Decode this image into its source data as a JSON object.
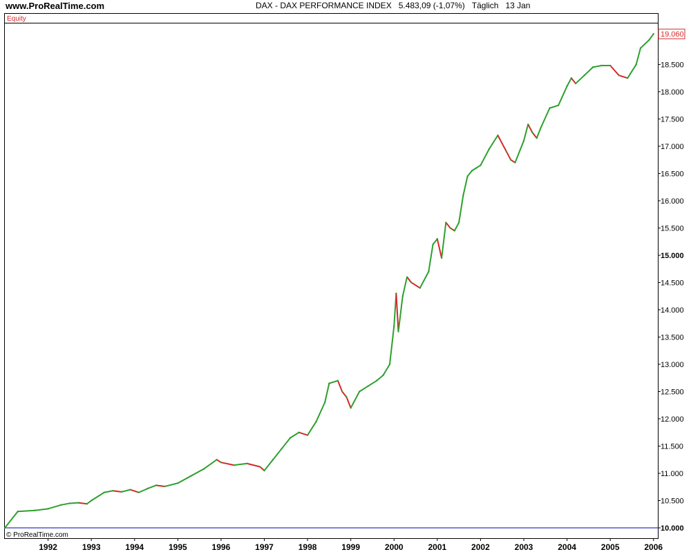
{
  "header": {
    "site": "www.ProRealTime.com",
    "instrument": "DAX - DAX PERFORMANCE INDEX",
    "quote": "5.483,09 (-1,07%)",
    "period": "Täglich",
    "date": "13 Jan"
  },
  "panel_label": "Equity",
  "copyright": "© ProRealTime.com",
  "colors": {
    "up": "#2ca02c",
    "down": "#d62728",
    "frame": "#000000",
    "baseline": "#0000aa",
    "last_price": "#d62728"
  },
  "chart_data": {
    "type": "line",
    "title": "DAX - DAX PERFORMANCE INDEX",
    "series": [
      {
        "name": "Equity",
        "x": [
          1991.0,
          1991.3,
          1991.7,
          1992.0,
          1992.3,
          1992.5,
          1992.7,
          1992.9,
          1993.0,
          1993.3,
          1993.5,
          1993.7,
          1993.9,
          1994.1,
          1994.3,
          1994.5,
          1994.7,
          1995.0,
          1995.3,
          1995.6,
          1995.9,
          1996.0,
          1996.3,
          1996.6,
          1996.9,
          1997.0,
          1997.2,
          1997.4,
          1997.6,
          1997.8,
          1998.0,
          1998.2,
          1998.4,
          1998.5,
          1998.7,
          1998.8,
          1998.9,
          1999.0,
          1999.2,
          1999.4,
          1999.6,
          1999.75,
          1999.9,
          2000.0,
          2000.05,
          2000.1,
          2000.2,
          2000.3,
          2000.4,
          2000.6,
          2000.8,
          2000.9,
          2001.0,
          2001.1,
          2001.2,
          2001.3,
          2001.4,
          2001.5,
          2001.6,
          2001.7,
          2001.8,
          2001.9,
          2002.0,
          2002.2,
          2002.4,
          2002.6,
          2002.7,
          2002.8,
          2003.0,
          2003.1,
          2003.2,
          2003.3,
          2003.4,
          2003.6,
          2003.8,
          2004.0,
          2004.1,
          2004.2,
          2004.4,
          2004.6,
          2004.8,
          2005.0,
          2005.2,
          2005.4,
          2005.6,
          2005.7,
          2005.9,
          2006.0
        ],
        "values": [
          10000,
          10300,
          10320,
          10350,
          10420,
          10450,
          10460,
          10440,
          10500,
          10650,
          10680,
          10660,
          10700,
          10650,
          10720,
          10780,
          10760,
          10820,
          10950,
          11080,
          11250,
          11200,
          11150,
          11180,
          11120,
          11050,
          11250,
          11450,
          11650,
          11750,
          11700,
          11950,
          12300,
          12650,
          12700,
          12500,
          12400,
          12200,
          12500,
          12600,
          12700,
          12800,
          13000,
          13700,
          14300,
          13600,
          14250,
          14600,
          14500,
          14400,
          14700,
          15200,
          15300,
          14950,
          15600,
          15500,
          15450,
          15600,
          16100,
          16450,
          16550,
          16600,
          16650,
          16950,
          17200,
          16900,
          16750,
          16700,
          17100,
          17400,
          17250,
          17150,
          17350,
          17700,
          17750,
          18100,
          18250,
          18150,
          18300,
          18450,
          18480,
          18480,
          18300,
          18250,
          18500,
          18800,
          18950,
          19060
        ]
      }
    ],
    "ylim": [
      10000,
      19100
    ],
    "xlim": [
      1991.0,
      2006.1
    ],
    "y_ticks": [
      10000,
      10500,
      11000,
      11500,
      12000,
      12500,
      13000,
      13500,
      14000,
      14500,
      15000,
      15500,
      16000,
      16500,
      17000,
      17500,
      18000,
      18500
    ],
    "y_tick_labels": [
      "10.000",
      "10.500",
      "11.000",
      "11.500",
      "12.000",
      "12.500",
      "13.000",
      "13.500",
      "14.000",
      "14.500",
      "15.000",
      "15.500",
      "16.000",
      "16.500",
      "17.000",
      "17.500",
      "18.000",
      "18.500"
    ],
    "bold_y_ticks": [
      10000,
      15000
    ],
    "x_ticks": [
      1992,
      1993,
      1994,
      1995,
      1996,
      1997,
      1998,
      1999,
      2000,
      2001,
      2002,
      2003,
      2004,
      2005,
      2006
    ],
    "x_tick_labels": [
      "1992",
      "1993",
      "1994",
      "1995",
      "1996",
      "1997",
      "1998",
      "1999",
      "2000",
      "2001",
      "2002",
      "2003",
      "2004",
      "2005",
      "2006"
    ],
    "last_value": 19060,
    "last_value_label": "19.060",
    "baseline": 10000,
    "grid": false
  }
}
